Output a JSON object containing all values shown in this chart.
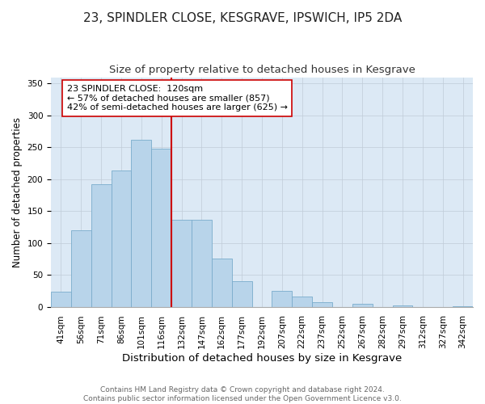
{
  "title": "23, SPINDLER CLOSE, KESGRAVE, IPSWICH, IP5 2DA",
  "subtitle": "Size of property relative to detached houses in Kesgrave",
  "xlabel": "Distribution of detached houses by size in Kesgrave",
  "ylabel": "Number of detached properties",
  "bar_labels": [
    "41sqm",
    "56sqm",
    "71sqm",
    "86sqm",
    "101sqm",
    "116sqm",
    "132sqm",
    "147sqm",
    "162sqm",
    "177sqm",
    "192sqm",
    "207sqm",
    "222sqm",
    "237sqm",
    "252sqm",
    "267sqm",
    "282sqm",
    "297sqm",
    "312sqm",
    "327sqm",
    "342sqm"
  ],
  "bar_heights": [
    24,
    120,
    192,
    214,
    262,
    248,
    137,
    136,
    76,
    40,
    0,
    25,
    16,
    7,
    0,
    5,
    0,
    2,
    0,
    0,
    1
  ],
  "bar_color": "#b8d4ea",
  "bar_edge_color": "#7aaccc",
  "vline_x": 5.5,
  "vline_color": "#cc0000",
  "annotation_text": "23 SPINDLER CLOSE:  120sqm\n← 57% of detached houses are smaller (857)\n42% of semi-detached houses are larger (625) →",
  "annotation_box_color": "#ffffff",
  "annotation_box_edge": "#cc0000",
  "ylim": [
    0,
    360
  ],
  "yticks": [
    0,
    50,
    100,
    150,
    200,
    250,
    300,
    350
  ],
  "footer_line1": "Contains HM Land Registry data © Crown copyright and database right 2024.",
  "footer_line2": "Contains public sector information licensed under the Open Government Licence v3.0.",
  "title_fontsize": 11,
  "subtitle_fontsize": 9.5,
  "xlabel_fontsize": 9.5,
  "ylabel_fontsize": 8.5,
  "tick_fontsize": 7.5,
  "annotation_fontsize": 8,
  "footer_fontsize": 6.5,
  "bg_color": "#dce9f5"
}
